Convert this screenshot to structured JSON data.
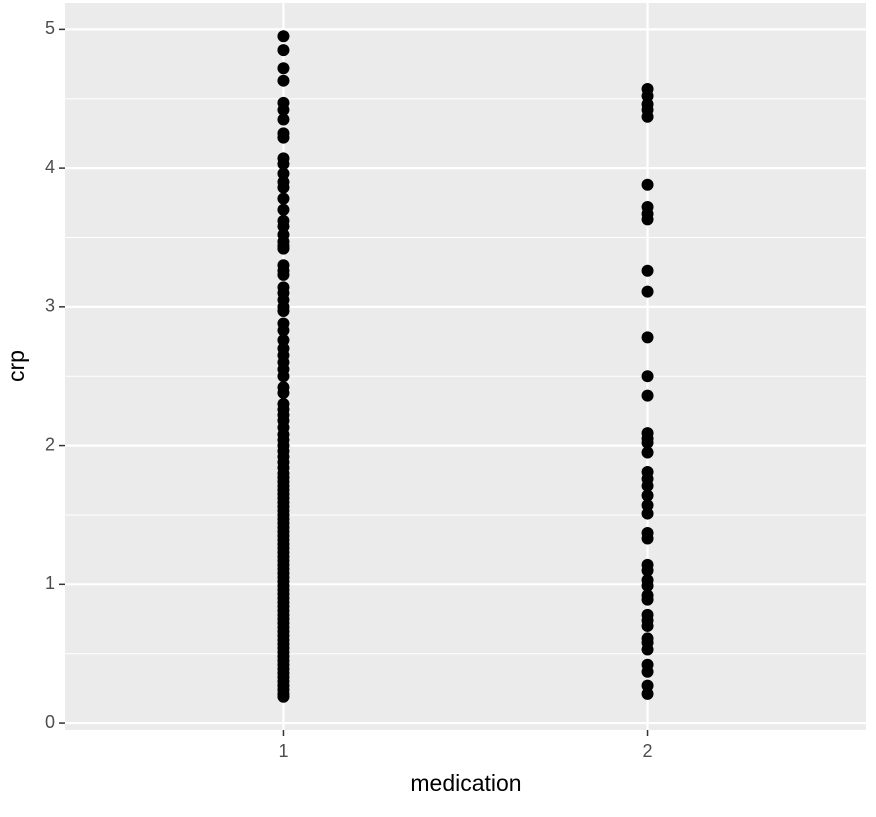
{
  "chart_data": {
    "type": "strip",
    "x_label": "medication",
    "y_label": "crp",
    "categories": [
      "1",
      "2"
    ],
    "color": "#000000",
    "values": [
      [
        4.95,
        4.85,
        4.72,
        4.63,
        4.47,
        4.42,
        4.35,
        4.25,
        4.22,
        4.07,
        4.03,
        3.96,
        3.9,
        3.86,
        3.78,
        3.7,
        3.62,
        3.58,
        3.52,
        3.47,
        3.44,
        3.42,
        3.3,
        3.26,
        3.23,
        3.14,
        3.1,
        3.05,
        3.0,
        2.97,
        2.88,
        2.83,
        2.76,
        2.7,
        2.65,
        2.6,
        2.55,
        2.5,
        2.42,
        2.38,
        2.3,
        2.26,
        2.22,
        2.18,
        2.13,
        2.08,
        2.04,
        2.0,
        1.96,
        1.92,
        1.88,
        1.84,
        1.8,
        1.77,
        1.74,
        1.71,
        1.68,
        1.65,
        1.62,
        1.59,
        1.56,
        1.53,
        1.5,
        1.47,
        1.44,
        1.41,
        1.38,
        1.35,
        1.32,
        1.29,
        1.26,
        1.23,
        1.2,
        1.17,
        1.14,
        1.11,
        1.08,
        1.05,
        1.02,
        0.99,
        0.96,
        0.93,
        0.9,
        0.87,
        0.84,
        0.81,
        0.78,
        0.75,
        0.72,
        0.69,
        0.66,
        0.63,
        0.6,
        0.57,
        0.54,
        0.51,
        0.48,
        0.45,
        0.42,
        0.39,
        0.36,
        0.33,
        0.3,
        0.27,
        0.24,
        0.21,
        0.19
      ],
      [
        4.57,
        4.52,
        4.46,
        4.42,
        4.37,
        3.88,
        3.72,
        3.67,
        3.63,
        3.26,
        3.11,
        2.78,
        2.5,
        2.36,
        2.09,
        2.05,
        2.02,
        1.95,
        1.81,
        1.76,
        1.71,
        1.64,
        1.57,
        1.51,
        1.37,
        1.33,
        1.14,
        1.1,
        1.03,
        0.99,
        0.92,
        0.89,
        0.78,
        0.74,
        0.7,
        0.61,
        0.58,
        0.53,
        0.42,
        0.37,
        0.27,
        0.21
      ]
    ],
    "ylim": [
      -0.05,
      5.19
    ],
    "yticks": [
      0,
      1,
      2,
      3,
      4,
      5
    ],
    "y_minor_ticks": [
      0.5,
      1.5,
      2.5,
      3.5,
      4.5
    ],
    "grid": true
  }
}
